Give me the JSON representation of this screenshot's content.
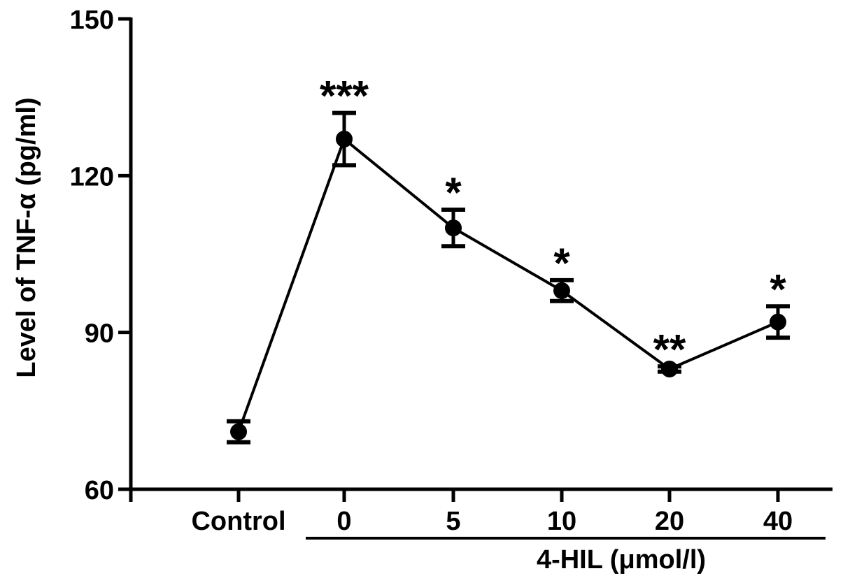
{
  "chart_data": {
    "type": "line",
    "ylabel": "Level of TNF-α (pg/ml)",
    "xlabel": "4-HIL (μmol/l)",
    "ylim": [
      60,
      150
    ],
    "yticks": [
      "60",
      "90",
      "120",
      "150"
    ],
    "ytick_values": [
      60,
      90,
      120,
      150
    ],
    "categories": [
      "Control",
      "0",
      "5",
      "10",
      "20",
      "40"
    ],
    "series": [
      {
        "values": [
          71,
          127,
          110,
          98,
          83,
          92
        ],
        "errors": [
          2,
          5,
          3.5,
          2,
          0.5,
          3
        ]
      }
    ],
    "significance": [
      "",
      "***",
      "*",
      "*",
      "**",
      "*"
    ],
    "grid": false,
    "legend": false
  }
}
